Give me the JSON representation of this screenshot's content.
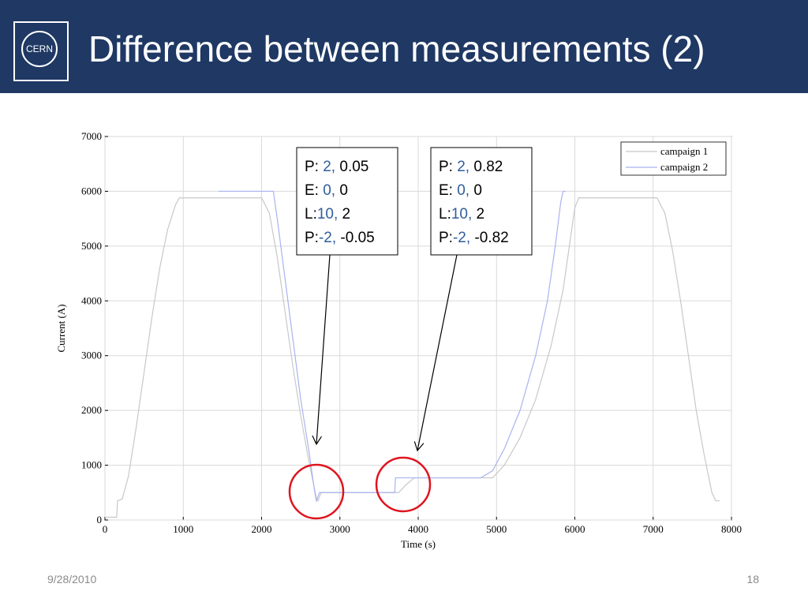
{
  "title": "Difference between measurements (2)",
  "logo": "CERN",
  "footer": {
    "date": "9/28/2010",
    "page": "18"
  },
  "annotations": [
    {
      "lines": [
        [
          "P: ",
          "2,",
          " 0.05"
        ],
        [
          "E: ",
          "0,",
          " 0"
        ],
        [
          "L:",
          "10,",
          " 2"
        ],
        [
          "P:",
          "-2,",
          " -0.05"
        ]
      ]
    },
    {
      "lines": [
        [
          "P: ",
          "2,",
          " 0.82"
        ],
        [
          "E: ",
          "0,",
          " 0"
        ],
        [
          "L:",
          "10,",
          " 2"
        ],
        [
          "P:",
          "-2,",
          " -0.82"
        ]
      ]
    }
  ],
  "chart_data": {
    "type": "line",
    "xlabel": "Time (s)",
    "ylabel": "Current (A)",
    "xlim": [
      0,
      8000
    ],
    "xticks": [
      0,
      1000,
      2000,
      3000,
      4000,
      5000,
      6000,
      7000,
      8000
    ],
    "ylim": [
      0,
      7000
    ],
    "yticks": [
      0,
      1000,
      2000,
      3000,
      4000,
      5000,
      6000,
      7000
    ],
    "grid": true,
    "legend": "upper right",
    "series": [
      {
        "name": "campaign 1",
        "color": "#c8c8c8",
        "x": [
          0,
          150,
          160,
          220,
          300,
          400,
          500,
          600,
          700,
          800,
          900,
          950,
          2000,
          2100,
          2200,
          2300,
          2400,
          2500,
          2600,
          2700,
          2720,
          2760,
          3750,
          3850,
          3950,
          4950,
          5100,
          5300,
          5500,
          5700,
          5850,
          5950,
          6000,
          6050,
          7050,
          7150,
          7250,
          7350,
          7450,
          7550,
          7650,
          7750,
          7800,
          7850
        ],
        "values": [
          50,
          50,
          350,
          380,
          800,
          1700,
          2700,
          3700,
          4600,
          5300,
          5750,
          5880,
          5880,
          5600,
          4800,
          3800,
          2800,
          1900,
          1100,
          400,
          350,
          500,
          500,
          650,
          770,
          770,
          1000,
          1500,
          2200,
          3200,
          4200,
          5200,
          5700,
          5880,
          5880,
          5600,
          4900,
          4000,
          3000,
          2000,
          1200,
          500,
          350,
          350
        ]
      },
      {
        "name": "campaign 2",
        "color": "#a8b4f0",
        "x": [
          1450,
          2150,
          2200,
          2300,
          2400,
          2500,
          2600,
          2680,
          2700,
          2740,
          3700,
          3710,
          4800,
          4950,
          5100,
          5300,
          5500,
          5650,
          5750,
          5820,
          5850,
          5880
        ],
        "values": [
          6000,
          6000,
          5500,
          4400,
          3300,
          2200,
          1300,
          500,
          350,
          500,
          500,
          770,
          770,
          900,
          1300,
          2000,
          3000,
          4000,
          5000,
          5800,
          6000,
          6000
        ]
      }
    ]
  }
}
